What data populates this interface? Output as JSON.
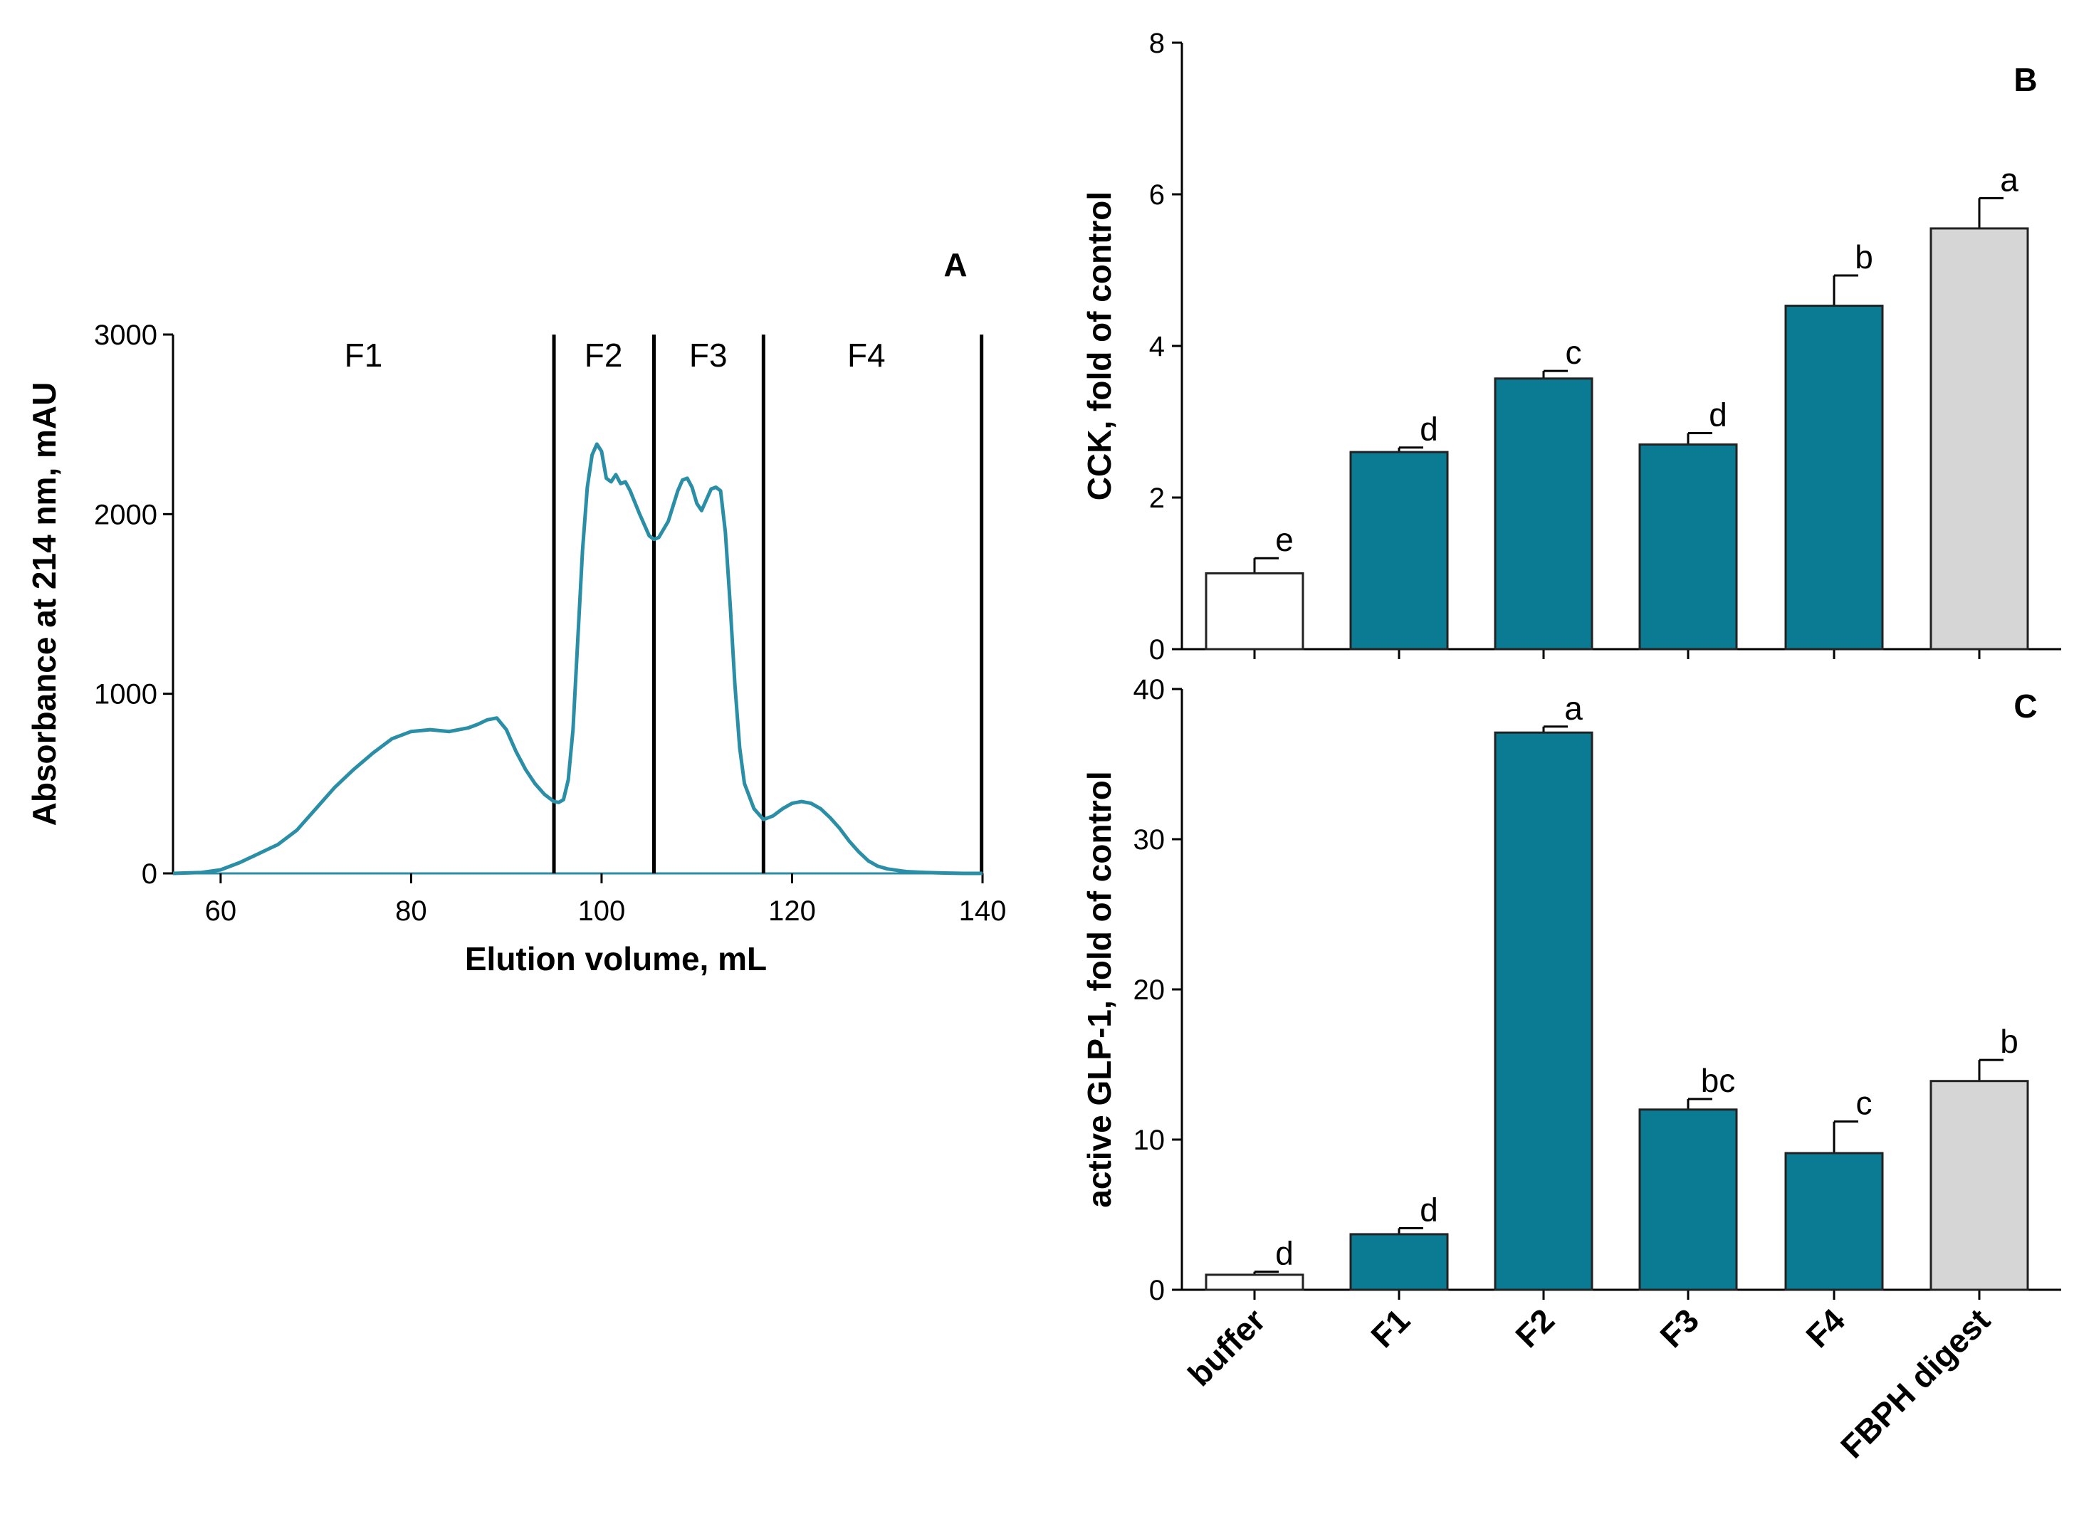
{
  "colors": {
    "trace": "#2a8fa6",
    "fraction_bar": "#0a7b92",
    "buffer_bar": "#ffffff",
    "digest_bar": "#d6d6d6",
    "axis": "#000000"
  },
  "chart_data": [
    {
      "panel": "A",
      "type": "line",
      "xlabel": "Elution volume, mL",
      "ylabel": "Absorbance at 214 nm, mAU",
      "xlim": [
        55,
        140
      ],
      "ylim": [
        0,
        3000
      ],
      "xticks": [
        60,
        80,
        100,
        120,
        140
      ],
      "yticks": [
        0,
        1000,
        2000,
        3000
      ],
      "fraction_boundaries": [
        95,
        105.5,
        117,
        139.9
      ],
      "fraction_labels": [
        {
          "label": "F1",
          "x": 75
        },
        {
          "label": "F2",
          "x": 100.2
        },
        {
          "label": "F3",
          "x": 111.2
        },
        {
          "label": "F4",
          "x": 127.8
        }
      ],
      "series": [
        {
          "name": "Absorbance",
          "x": [
            55,
            58,
            60,
            62,
            64,
            66,
            68,
            70,
            72,
            74,
            76,
            78,
            80,
            82,
            84,
            86,
            87,
            88,
            89,
            90,
            91,
            92,
            93,
            94,
            95,
            95.5,
            96,
            96.5,
            97,
            97.5,
            98,
            98.5,
            99,
            99.5,
            100,
            100.5,
            101,
            101.5,
            102,
            102.5,
            103,
            104,
            105,
            105.5,
            106,
            107,
            108,
            108.5,
            109,
            109.5,
            110,
            110.5,
            111,
            111.5,
            112,
            112.5,
            113,
            113.5,
            114,
            114.5,
            115,
            116,
            117,
            118,
            119,
            120,
            121,
            122,
            123,
            124,
            125,
            126,
            127,
            128,
            129,
            130,
            132,
            134,
            136,
            138,
            140
          ],
          "y": [
            0,
            5,
            20,
            60,
            110,
            160,
            240,
            360,
            480,
            580,
            670,
            750,
            790,
            800,
            790,
            810,
            830,
            855,
            865,
            800,
            680,
            580,
            500,
            440,
            400,
            395,
            410,
            520,
            800,
            1300,
            1800,
            2150,
            2330,
            2390,
            2350,
            2200,
            2180,
            2220,
            2170,
            2180,
            2130,
            2000,
            1880,
            1860,
            1870,
            1960,
            2130,
            2190,
            2200,
            2150,
            2060,
            2020,
            2080,
            2140,
            2150,
            2130,
            1900,
            1500,
            1050,
            700,
            500,
            360,
            300,
            320,
            360,
            390,
            400,
            390,
            360,
            310,
            250,
            180,
            120,
            70,
            40,
            25,
            10,
            5,
            2,
            0,
            0
          ]
        }
      ],
      "title": "A",
      "fraction_label_texts": [
        "F1",
        "F2",
        "F3",
        "F4"
      ]
    },
    {
      "panel": "B",
      "type": "bar",
      "title": "B",
      "ylabel": "CCK, fold of control",
      "ylim": [
        0,
        8
      ],
      "yticks": [
        0,
        2,
        4,
        6,
        8
      ],
      "categories": [
        "buffer",
        "F1",
        "F2",
        "F3",
        "F4",
        "FBPH digest"
      ],
      "values": [
        1.0,
        2.6,
        3.57,
        2.7,
        4.53,
        5.55
      ],
      "errors": [
        0.2,
        0.06,
        0.1,
        0.15,
        0.4,
        0.4
      ],
      "significance": [
        "e",
        "d",
        "c",
        "d",
        "b",
        "a"
      ]
    },
    {
      "panel": "C",
      "type": "bar",
      "title": "C",
      "ylabel": "active GLP-1, fold of control",
      "ylim": [
        0,
        40
      ],
      "yticks": [
        0,
        10,
        20,
        30,
        40
      ],
      "categories": [
        "buffer",
        "F1",
        "F2",
        "F3",
        "F4",
        "FBPH digest"
      ],
      "values": [
        1.0,
        3.7,
        37.1,
        12.0,
        9.1,
        13.9
      ],
      "errors": [
        0.2,
        0.4,
        0.4,
        0.7,
        2.1,
        1.4
      ],
      "significance": [
        "d",
        "d",
        "a",
        "bc",
        "c",
        "b"
      ]
    }
  ]
}
